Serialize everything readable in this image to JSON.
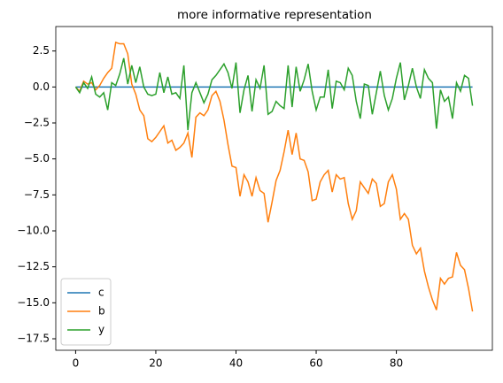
{
  "chart_data": {
    "type": "line",
    "title": "more informative representation",
    "x": [
      0,
      1,
      2,
      3,
      4,
      5,
      6,
      7,
      8,
      9,
      10,
      11,
      12,
      13,
      14,
      15,
      16,
      17,
      18,
      19,
      20,
      21,
      22,
      23,
      24,
      25,
      26,
      27,
      28,
      29,
      30,
      31,
      32,
      33,
      34,
      35,
      36,
      37,
      38,
      39,
      40,
      41,
      42,
      43,
      44,
      45,
      46,
      47,
      48,
      49,
      50,
      51,
      52,
      53,
      54,
      55,
      56,
      57,
      58,
      59,
      60,
      61,
      62,
      63,
      64,
      65,
      66,
      67,
      68,
      69,
      70,
      71,
      72,
      73,
      74,
      75,
      76,
      77,
      78,
      79,
      80,
      81,
      82,
      83,
      84,
      85,
      86,
      87,
      88,
      89,
      90,
      91,
      92,
      93,
      94,
      95,
      96,
      97,
      98,
      99
    ],
    "series": [
      {
        "name": "c",
        "color": "#1f77b4",
        "values": [
          0,
          0,
          0,
          0,
          0,
          0,
          0,
          0,
          0,
          0,
          0,
          0,
          0,
          0,
          0,
          0,
          0,
          0,
          0,
          0,
          0,
          0,
          0,
          0,
          0,
          0,
          0,
          0,
          0,
          0,
          0,
          0,
          0,
          0,
          0,
          0,
          0,
          0,
          0,
          0,
          0,
          0,
          0,
          0,
          0,
          0,
          0,
          0,
          0,
          0,
          0,
          0,
          0,
          0,
          0,
          0,
          0,
          0,
          0,
          0,
          0,
          0,
          0,
          0,
          0,
          0,
          0,
          0,
          0,
          0,
          0,
          0,
          0,
          0,
          0,
          0,
          0,
          0,
          0,
          0,
          0,
          0,
          0,
          0,
          0,
          0,
          0,
          0,
          0,
          0,
          0,
          0,
          0,
          0,
          0,
          0,
          0,
          0,
          0,
          0
        ]
      },
      {
        "name": "b",
        "color": "#ff7f0e",
        "values": [
          0,
          -0.3,
          0.4,
          0.2,
          0.3,
          -0.2,
          0.1,
          0.6,
          1.0,
          1.3,
          3.1,
          3.0,
          3.0,
          2.3,
          0.2,
          -0.5,
          -1.6,
          -2.0,
          -3.6,
          -3.8,
          -3.5,
          -3.1,
          -2.7,
          -3.9,
          -3.7,
          -4.4,
          -4.2,
          -3.9,
          -3.2,
          -4.9,
          -2.1,
          -1.8,
          -2.0,
          -1.6,
          -0.6,
          -0.3,
          -1.0,
          -2.3,
          -4.0,
          -5.5,
          -5.6,
          -7.6,
          -6.1,
          -6.6,
          -7.6,
          -6.3,
          -7.2,
          -7.4,
          -9.4,
          -8.0,
          -6.5,
          -5.8,
          -4.5,
          -3.0,
          -4.7,
          -3.2,
          -5.0,
          -5.1,
          -5.9,
          -7.9,
          -7.8,
          -6.6,
          -6.1,
          -5.8,
          -7.3,
          -6.1,
          -6.4,
          -6.3,
          -8.1,
          -9.2,
          -8.6,
          -6.6,
          -7.0,
          -7.4,
          -6.4,
          -6.7,
          -8.3,
          -8.1,
          -6.6,
          -6.1,
          -7.1,
          -9.2,
          -8.8,
          -9.2,
          -11.0,
          -11.6,
          -11.2,
          -12.8,
          -13.9,
          -14.8,
          -15.5,
          -13.3,
          -13.7,
          -13.3,
          -13.2,
          -11.5,
          -12.4,
          -12.7,
          -14.0,
          -15.6
        ]
      },
      {
        "name": "y",
        "color": "#2ca02c",
        "values": [
          0,
          -0.4,
          0.3,
          -0.1,
          0.7,
          -0.5,
          -0.7,
          -0.4,
          -1.6,
          0.3,
          0.1,
          0.9,
          2.0,
          0.2,
          1.5,
          0.3,
          1.4,
          0.0,
          -0.5,
          -0.6,
          -0.5,
          1.0,
          -0.4,
          0.7,
          -0.5,
          -0.4,
          -0.8,
          1.5,
          -3.0,
          -0.4,
          0.3,
          -0.4,
          -1.1,
          -0.5,
          0.5,
          0.8,
          1.2,
          1.6,
          1.0,
          -0.1,
          1.7,
          -1.8,
          -0.2,
          0.8,
          -1.7,
          0.5,
          -0.1,
          1.5,
          -1.9,
          -1.7,
          -1.0,
          -1.3,
          -1.5,
          1.5,
          -1.4,
          1.4,
          -0.3,
          0.5,
          1.6,
          -0.3,
          -1.6,
          -0.7,
          -0.7,
          1.2,
          -1.5,
          0.4,
          0.3,
          -0.2,
          1.3,
          0.8,
          -1.0,
          -2.2,
          0.2,
          0.1,
          -1.9,
          -0.4,
          1.1,
          -0.6,
          -1.6,
          -0.8,
          0.6,
          1.7,
          -0.9,
          0.1,
          1.3,
          0.0,
          -0.8,
          1.2,
          0.6,
          0.3,
          -2.9,
          -0.2,
          -1.0,
          -0.7,
          -2.2,
          0.3,
          -0.3,
          0.8,
          0.6,
          -1.3
        ]
      }
    ],
    "xlim": [
      -4.95,
      103.95
    ],
    "xticks": [
      0,
      20,
      40,
      60,
      80
    ],
    "ylim": [
      -18.3,
      4.2
    ],
    "yticks": [
      2.5,
      {
        "value": 0,
        "label": "0.0"
      },
      {
        "value": -2.5,
        "label": "−2.5"
      },
      {
        "value": -5,
        "label": "−5.0"
      },
      {
        "value": -7.5,
        "label": "−7.5"
      },
      {
        "value": -10,
        "label": "−10.0"
      },
      {
        "value": -12.5,
        "label": "−12.5"
      },
      {
        "value": -15,
        "label": "−15.0"
      },
      {
        "value": -17.5,
        "label": "−17.5"
      }
    ],
    "legend": "lower left"
  }
}
